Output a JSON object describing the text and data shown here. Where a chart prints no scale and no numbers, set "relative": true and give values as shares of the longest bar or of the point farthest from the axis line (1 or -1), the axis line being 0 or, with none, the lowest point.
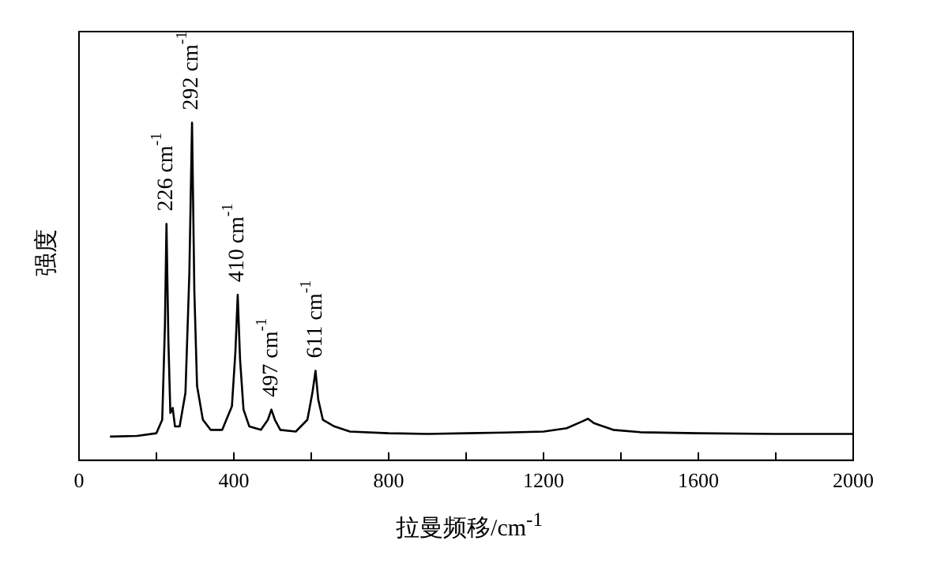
{
  "chart_data": {
    "type": "line",
    "relative": true,
    "xlabel": "拉曼频移/cm$^{-1}$",
    "ylabel": "强度",
    "xlim": [
      0,
      2000
    ],
    "xticks": [
      0,
      {
        "value": 200,
        "label": null
      },
      400,
      {
        "value": 600,
        "label": null
      },
      800,
      {
        "value": 1000,
        "label": null
      },
      1200,
      {
        "value": 1400,
        "label": null
      },
      1600,
      {
        "value": 1800,
        "label": null
      },
      2000
    ],
    "grid": false,
    "legend": false,
    "marker": "none",
    "line_style": "solid",
    "series": [
      {
        "color": "#000000",
        "x": [
          80,
          150,
          200,
          215,
          222,
          226,
          231,
          236,
          242,
          248,
          260,
          275,
          285,
          292,
          298,
          305,
          320,
          340,
          370,
          395,
          404,
          410,
          416,
          425,
          440,
          470,
          488,
          497,
          506,
          520,
          560,
          590,
          603,
          611,
          618,
          630,
          660,
          700,
          800,
          900,
          1000,
          1100,
          1200,
          1260,
          1300,
          1315,
          1330,
          1380,
          1450,
          1600,
          1800,
          2000
        ],
        "values": [
          0.07,
          0.072,
          0.08,
          0.12,
          0.4,
          0.7,
          0.35,
          0.14,
          0.155,
          0.1,
          0.1,
          0.2,
          0.55,
          1.0,
          0.5,
          0.22,
          0.12,
          0.09,
          0.09,
          0.16,
          0.32,
          0.49,
          0.3,
          0.15,
          0.1,
          0.09,
          0.12,
          0.15,
          0.12,
          0.09,
          0.085,
          0.12,
          0.2,
          0.265,
          0.18,
          0.12,
          0.1,
          0.085,
          0.08,
          0.078,
          0.08,
          0.082,
          0.085,
          0.095,
          0.115,
          0.123,
          0.11,
          0.09,
          0.083,
          0.08,
          0.078,
          0.078
        ]
      }
    ],
    "annotations": [
      {
        "text": "226 cm$^{-1}$",
        "x": 226,
        "y": 0.7
      },
      {
        "text": "292 cm$^{-1}$",
        "x": 292,
        "y": 1.0
      },
      {
        "text": "410 cm$^{-1}$",
        "x": 410,
        "y": 0.49
      },
      {
        "text": "497 cm$^{-1}$",
        "x": 497,
        "y": 0.15
      },
      {
        "text": "611 cm$^{-1}$",
        "x": 611,
        "y": 0.265
      }
    ]
  }
}
